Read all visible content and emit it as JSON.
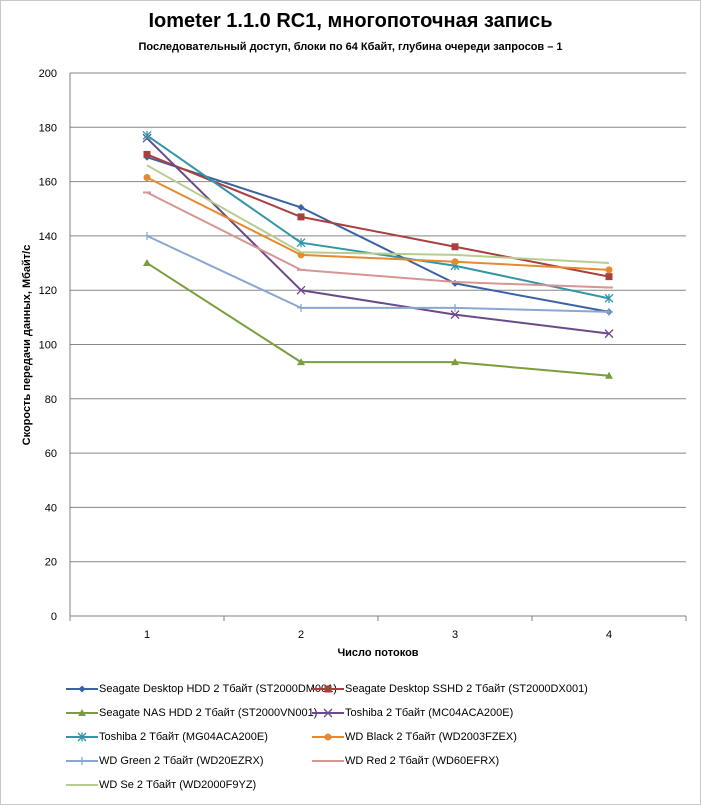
{
  "chart_data": {
    "type": "line",
    "title": "Iometer 1.1.0 RC1, многопоточная запись",
    "subtitle": "Последовательный  доступ, блоки  по 64 Кбайт,  глубина очереди запросов – 1",
    "xlabel": "Число  потоков",
    "ylabel": "Скорость  передачи данных, Мбайт/с",
    "categories": [
      "1",
      "2",
      "3",
      "4"
    ],
    "ylim": [
      0,
      200
    ],
    "yticks": [
      "0",
      "20",
      "40",
      "60",
      "80",
      "100",
      "120",
      "140",
      "160",
      "180",
      "200"
    ],
    "grid": true,
    "legend_position": "bottom",
    "series": [
      {
        "name": "Seagate Desktop HDD 2 Тбайт (ST2000DM001)",
        "values": [
          169,
          150.5,
          122.5,
          112
        ],
        "color": "#3a63a3",
        "marker": "diamond"
      },
      {
        "name": "Seagate Desktop SSHD 2 Тбайт (ST2000DX001)",
        "values": [
          170,
          147,
          136,
          125
        ],
        "color": "#a8403e",
        "marker": "square"
      },
      {
        "name": "Seagate NAS HDD 2 Тбайт (ST2000VN001)",
        "values": [
          130,
          93.5,
          93.5,
          88.5
        ],
        "color": "#7b9d3e",
        "marker": "triangle"
      },
      {
        "name": "Toshiba 2 Тбайт (MC04ACA200E)",
        "values": [
          176,
          120,
          111,
          104
        ],
        "color": "#6a4a8d",
        "marker": "x"
      },
      {
        "name": "Toshiba 2 Тбайт (MG04ACA200E)",
        "values": [
          177,
          137.5,
          129,
          117
        ],
        "color": "#3196a8",
        "marker": "star"
      },
      {
        "name": "WD Black 2 Тбайт (WD2003FZEX)",
        "values": [
          161.5,
          133,
          130.5,
          127.5
        ],
        "color": "#e58a2e",
        "marker": "circle"
      },
      {
        "name": "WD Green 2 Тбайт (WD20EZRX)",
        "values": [
          140,
          113.5,
          113.5,
          112
        ],
        "color": "#8aa7cf",
        "marker": "plus"
      },
      {
        "name": "WD Red 2 Тбайт (WD60EFRX)",
        "values": [
          156,
          127.5,
          123,
          121
        ],
        "color": "#d89593",
        "marker": "dash"
      },
      {
        "name": "WD Se 2 Тбайт (WD2000F9YZ)",
        "values": [
          166,
          134,
          133,
          130
        ],
        "color": "#b7cc8f",
        "marker": "none"
      }
    ]
  }
}
